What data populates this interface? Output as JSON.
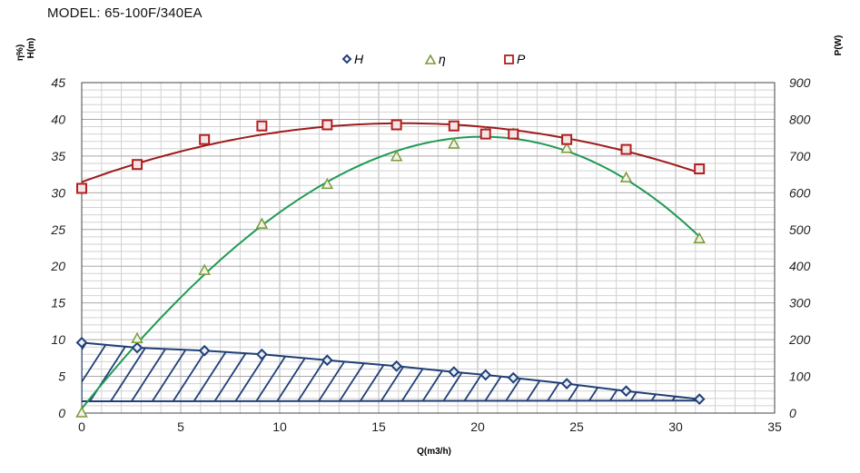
{
  "header": {
    "model": "MODEL: 65-100F/340EA"
  },
  "chart_data": {
    "type": "line",
    "xlabel": "Q(m3/h)",
    "ylabel_left_top": "η%)",
    "ylabel_left_bottom": "H(m)",
    "ylabel_right": "P(W)",
    "xlim": [
      0,
      35
    ],
    "ylim_left": [
      0,
      45
    ],
    "ylim_right": [
      0,
      900
    ],
    "x_ticks": [
      "0",
      "5",
      "10",
      "15",
      "20",
      "25",
      "30",
      "35"
    ],
    "y_left_ticks": [
      "0",
      "5",
      "10",
      "15",
      "20",
      "25",
      "30",
      "35",
      "40",
      "45"
    ],
    "y_right_ticks": [
      "0",
      "100",
      "200",
      "300",
      "400",
      "500",
      "600",
      "700",
      "800",
      "900"
    ],
    "grid": true,
    "legend_position": "top-center",
    "series": [
      {
        "name": "H",
        "marker": "diamond",
        "color": "#1f3f77",
        "axis": "left",
        "points": [
          [
            0,
            9.6
          ],
          [
            2.8,
            8.9
          ],
          [
            6.2,
            8.5
          ],
          [
            9.1,
            8.0
          ],
          [
            12.4,
            7.2
          ],
          [
            15.9,
            6.4
          ],
          [
            18.8,
            5.6
          ],
          [
            20.4,
            5.2
          ],
          [
            21.8,
            4.8
          ],
          [
            24.5,
            4.0
          ],
          [
            27.5,
            3.0
          ],
          [
            31.2,
            1.9
          ]
        ]
      },
      {
        "name": "η",
        "marker": "triangle",
        "color": "#7a9a3a",
        "curve_color": "#1e9a55",
        "axis": "left",
        "points": [
          [
            0,
            0
          ],
          [
            2.8,
            10.1
          ],
          [
            6.2,
            19.4
          ],
          [
            9.1,
            25.7
          ],
          [
            12.4,
            31.1
          ],
          [
            15.9,
            34.9
          ],
          [
            18.8,
            36.6
          ],
          [
            20.4,
            38.1
          ],
          [
            21.8,
            38.0
          ],
          [
            24.5,
            36.0
          ],
          [
            27.5,
            32.0
          ],
          [
            31.2,
            23.7
          ]
        ]
      },
      {
        "name": "P",
        "marker": "square",
        "color": "#b02020",
        "curve_color": "#9e1b1b",
        "axis": "right",
        "points": [
          [
            0,
            612
          ],
          [
            2.8,
            677
          ],
          [
            6.2,
            745
          ],
          [
            9.1,
            782
          ],
          [
            12.4,
            785
          ],
          [
            15.9,
            785
          ],
          [
            18.8,
            782
          ],
          [
            20.4,
            760
          ],
          [
            21.8,
            760
          ],
          [
            24.5,
            745
          ],
          [
            27.5,
            718
          ],
          [
            31.2,
            665
          ]
        ]
      }
    ]
  }
}
